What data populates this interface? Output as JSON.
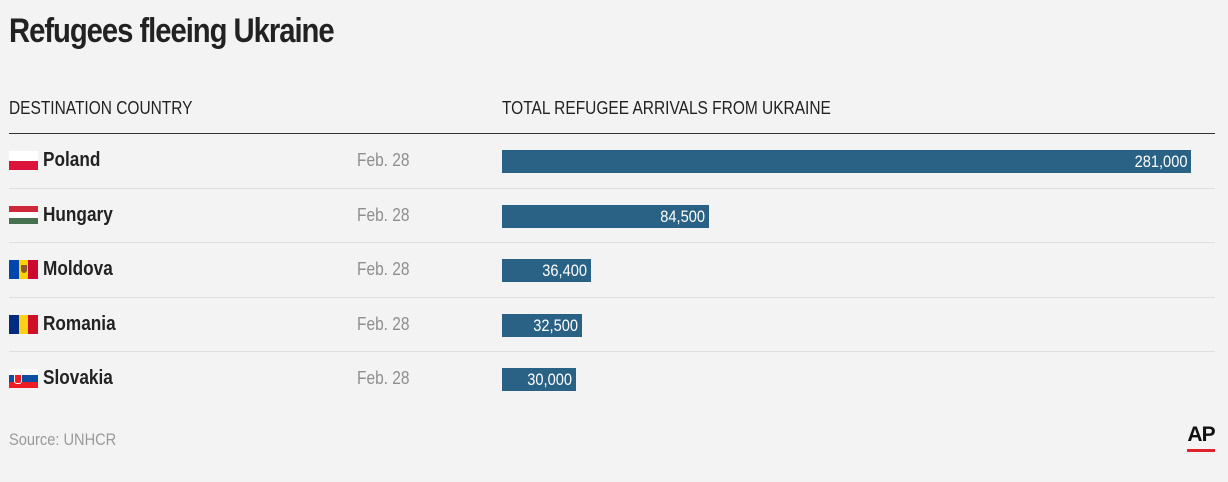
{
  "title": "Refugees fleeing Ukraine",
  "headers": {
    "left": "DESTINATION COUNTRY",
    "right": "TOTAL REFUGEE ARRIVALS FROM UKRAINE"
  },
  "source": "Source: UNHCR",
  "logo": "AP",
  "colors": {
    "bar": "#2a6286",
    "background": "#f3f3f3",
    "logo_accent": "#e0212e"
  },
  "chart_data": {
    "type": "bar",
    "orientation": "horizontal",
    "categories": [
      "Poland",
      "Hungary",
      "Moldova",
      "Romania",
      "Slovakia"
    ],
    "dates": [
      "Feb. 28",
      "Feb. 28",
      "Feb. 28",
      "Feb. 28",
      "Feb. 28"
    ],
    "values": [
      281000,
      84500,
      36400,
      32500,
      30000
    ],
    "value_labels": [
      "281,000",
      "84,500",
      "36,400",
      "32,500",
      "30,000"
    ],
    "title": "Refugees fleeing Ukraine",
    "xlabel": "TOTAL REFUGEE ARRIVALS FROM UKRAINE",
    "ylabel": "DESTINATION COUNTRY",
    "flags": [
      {
        "layout": "h",
        "stripes": [
          "#ffffff",
          "#dc143c"
        ]
      },
      {
        "layout": "h",
        "stripes": [
          "#ce2939",
          "#ffffff",
          "#477050"
        ]
      },
      {
        "layout": "v",
        "stripes": [
          "#0046ae",
          "#ffd200",
          "#cc092f"
        ],
        "emblem": true
      },
      {
        "layout": "v",
        "stripes": [
          "#002b7f",
          "#fcd116",
          "#ce1126"
        ]
      },
      {
        "layout": "h",
        "stripes": [
          "#ffffff",
          "#0b4ea2",
          "#ee1c25"
        ],
        "emblem": true
      }
    ]
  }
}
